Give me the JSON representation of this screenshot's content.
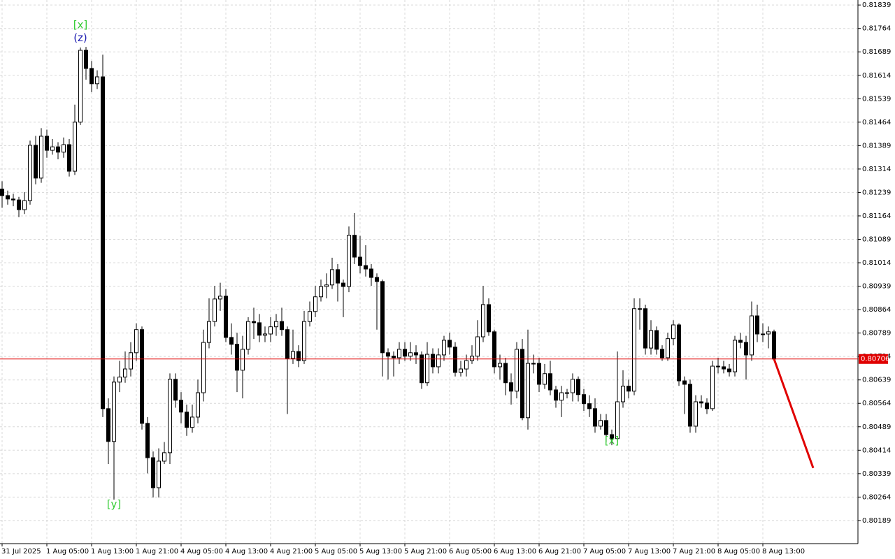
{
  "chart_data": {
    "type": "candlestick",
    "categories": [
      "31 Jul 2025",
      null,
      null,
      null,
      null,
      null,
      null,
      null,
      "1 Aug 05:00",
      null,
      null,
      null,
      null,
      null,
      null,
      null,
      "1 Aug 13:00",
      null,
      null,
      null,
      null,
      null,
      null,
      null,
      "1 Aug 21:00",
      null,
      null,
      null,
      null,
      null,
      null,
      null,
      "4 Aug 05:00",
      null,
      null,
      null,
      null,
      null,
      null,
      null,
      "4 Aug 13:00",
      null,
      null,
      null,
      null,
      null,
      null,
      null,
      "4 Aug 21:00",
      null,
      null,
      null,
      null,
      null,
      null,
      null,
      "5 Aug 05:00",
      null,
      null,
      null,
      null,
      null,
      null,
      null,
      "5 Aug 13:00",
      null,
      null,
      null,
      null,
      null,
      null,
      null,
      "5 Aug 21:00",
      null,
      null,
      null,
      null,
      null,
      null,
      null,
      "6 Aug 05:00",
      null,
      null,
      null,
      null,
      null,
      null,
      null,
      "6 Aug 13:00",
      null,
      null,
      null,
      null,
      null,
      null,
      null,
      "6 Aug 21:00",
      null,
      null,
      null,
      null,
      null,
      null,
      null,
      "7 Aug 05:00",
      null,
      null,
      null,
      null,
      null,
      null,
      null,
      "7 Aug 13:00",
      null,
      null,
      null,
      null,
      null,
      null,
      null,
      "7 Aug 21:00",
      null,
      null,
      null,
      null,
      null,
      null,
      null,
      "8 Aug 05:00",
      null,
      null,
      null,
      null,
      null,
      null,
      null,
      "8 Aug 13:00",
      null,
      null
    ],
    "open": [
      0.8125,
      0.81229,
      0.81218,
      0.81215,
      0.81184,
      0.81213,
      0.8139,
      0.81285,
      0.81419,
      0.81374,
      0.81385,
      0.81368,
      0.81392,
      0.81307,
      0.81464,
      0.81694,
      0.81636,
      0.81587,
      0.81609,
      0.80547,
      0.80442,
      0.80632,
      0.80648,
      0.80674,
      0.80726,
      0.808,
      0.805,
      0.8039,
      0.80294,
      0.80379,
      0.80406,
      0.80641,
      0.80574,
      0.80536,
      0.80487,
      0.8052,
      0.80598,
      0.80759,
      0.80826,
      0.80898,
      0.80907,
      0.80775,
      0.80753,
      0.8067,
      0.80737,
      0.80826,
      0.80822,
      0.80782,
      0.80786,
      0.80809,
      0.80826,
      0.808,
      0.80708,
      0.8073,
      0.80701,
      0.80826,
      0.80858,
      0.80905,
      0.80938,
      0.80943,
      0.80992,
      0.80949,
      0.80938,
      0.81102,
      0.81032,
      0.81005,
      0.80994,
      0.80967,
      0.80954,
      0.80726,
      0.80715,
      0.8071,
      0.80737,
      0.80715,
      0.80726,
      0.80719,
      0.8063,
      0.80721,
      0.80681,
      0.80719,
      0.80766,
      0.80744,
      0.80663,
      0.80674,
      0.80701,
      0.80715,
      0.80777,
      0.8088,
      0.80793,
      0.80681,
      0.80692,
      0.8063,
      0.80603,
      0.80737,
      0.80518,
      0.80692,
      0.80692,
      0.80625,
      0.80659,
      0.80607,
      0.80574,
      0.80598,
      0.80598,
      0.80641,
      0.80592,
      0.80563,
      0.80547,
      0.80491,
      0.80509,
      0.80464,
      0.80451,
      0.80569,
      0.80619,
      0.80603,
      0.80867,
      0.80867,
      0.80741,
      0.80797,
      0.80737,
      0.8071,
      0.80771,
      0.80815,
      0.80636,
      0.80625,
      0.80491,
      0.80569,
      0.80565,
      0.80547,
      0.80683,
      0.80681,
      0.80674,
      0.80665,
      0.80766,
      0.80759,
      0.80719,
      0.80844,
      0.80786,
      0.80786,
      0.80793
    ],
    "high": [
      0.81275,
      0.81245,
      0.81235,
      0.81225,
      0.8124,
      0.81405,
      0.8142,
      0.81445,
      0.8144,
      0.8141,
      0.814,
      0.81415,
      0.8141,
      0.8152,
      0.81703,
      0.81705,
      0.8166,
      0.8163,
      0.8168,
      0.8058,
      0.8065,
      0.807,
      0.8073,
      0.8076,
      0.8082,
      0.8081,
      0.8052,
      0.8041,
      0.8042,
      0.8044,
      0.8066,
      0.8066,
      0.806,
      0.8056,
      0.8056,
      0.8064,
      0.808,
      0.809,
      0.8094,
      0.8095,
      0.8093,
      0.8082,
      0.8079,
      0.8078,
      0.8084,
      0.8087,
      0.8085,
      0.8081,
      0.8084,
      0.8085,
      0.8087,
      0.8081,
      0.808,
      0.8075,
      0.8086,
      0.8089,
      0.8094,
      0.8096,
      0.8098,
      0.8103,
      0.8101,
      0.8096,
      0.8113,
      0.81173,
      0.811,
      0.8107,
      0.8101,
      0.8098,
      0.8096,
      0.8074,
      0.8073,
      0.8076,
      0.8076,
      0.8076,
      0.8075,
      0.8073,
      0.8076,
      0.8074,
      0.8074,
      0.8078,
      0.8079,
      0.8076,
      0.807,
      0.8072,
      0.8075,
      0.8083,
      0.8094,
      0.809,
      0.808,
      0.8072,
      0.8071,
      0.8066,
      0.8076,
      0.8077,
      0.808,
      0.8072,
      0.8071,
      0.8069,
      0.807,
      0.8062,
      0.8062,
      0.8061,
      0.8066,
      0.8065,
      0.8061,
      0.8059,
      0.8058,
      0.8053,
      0.8053,
      0.8048,
      0.8073,
      0.8067,
      0.8064,
      0.809,
      0.809,
      0.8088,
      0.8083,
      0.8081,
      0.8075,
      0.8079,
      0.8083,
      0.8082,
      0.8065,
      0.8064,
      0.8059,
      0.8059,
      0.8058,
      0.807,
      0.8071,
      0.807,
      0.8069,
      0.8078,
      0.8079,
      0.8078,
      0.8089,
      0.8088,
      0.8082,
      0.8081,
      0.808
    ],
    "low": [
      0.8119,
      0.812,
      0.81195,
      0.8116,
      0.8117,
      0.812,
      0.81265,
      0.8127,
      0.8135,
      0.8136,
      0.81345,
      0.8135,
      0.8129,
      0.81295,
      0.81455,
      0.816,
      0.8156,
      0.8157,
      0.8052,
      0.8037,
      0.80256,
      0.806,
      0.8063,
      0.8065,
      0.807,
      0.8048,
      0.8034,
      0.80263,
      0.80263,
      0.8037,
      0.8037,
      0.8055,
      0.805,
      0.8046,
      0.8047,
      0.805,
      0.8057,
      0.8074,
      0.8081,
      0.8086,
      0.8076,
      0.8072,
      0.806,
      0.8058,
      0.8072,
      0.8077,
      0.8076,
      0.8076,
      0.8076,
      0.8078,
      0.8078,
      0.8053,
      0.8069,
      0.8068,
      0.8069,
      0.8081,
      0.8084,
      0.8089,
      0.809,
      0.8093,
      0.8089,
      0.8084,
      0.8092,
      0.8101,
      0.8098,
      0.8097,
      0.8094,
      0.808,
      0.8065,
      0.8064,
      0.8065,
      0.8069,
      0.807,
      0.807,
      0.8069,
      0.8061,
      0.8062,
      0.8066,
      0.8066,
      0.807,
      0.8072,
      0.8065,
      0.8065,
      0.8065,
      0.8069,
      0.807,
      0.8076,
      0.8078,
      0.8066,
      0.8064,
      0.8059,
      0.8056,
      0.8058,
      0.8051,
      0.8048,
      0.8066,
      0.806,
      0.8061,
      0.8059,
      0.8055,
      0.8052,
      0.8058,
      0.8057,
      0.8057,
      0.8054,
      0.8052,
      0.8047,
      0.8048,
      0.8044,
      0.8043,
      0.8044,
      0.8055,
      0.8058,
      0.8059,
      0.808,
      0.8072,
      0.8072,
      0.8072,
      0.807,
      0.807,
      0.8075,
      0.8062,
      0.8053,
      0.8047,
      0.8047,
      0.8055,
      0.8053,
      0.8054,
      0.8066,
      0.8066,
      0.8065,
      0.8065,
      0.8074,
      0.8064,
      0.807,
      0.8076,
      0.8076,
      0.8074,
      0.807
    ],
    "close": [
      0.81229,
      0.81218,
      0.81215,
      0.81184,
      0.81213,
      0.8139,
      0.81285,
      0.81419,
      0.81374,
      0.81385,
      0.81368,
      0.81392,
      0.81307,
      0.81464,
      0.81694,
      0.81636,
      0.81587,
      0.81609,
      0.80547,
      0.80442,
      0.80632,
      0.80648,
      0.80674,
      0.80726,
      0.808,
      0.805,
      0.8039,
      0.80294,
      0.80379,
      0.80406,
      0.80641,
      0.80574,
      0.80536,
      0.80487,
      0.8052,
      0.80598,
      0.80759,
      0.80826,
      0.80898,
      0.80907,
      0.80775,
      0.80753,
      0.8067,
      0.80737,
      0.80826,
      0.80822,
      0.80782,
      0.80786,
      0.80809,
      0.80826,
      0.808,
      0.80708,
      0.8073,
      0.80701,
      0.80826,
      0.80858,
      0.80905,
      0.80938,
      0.80943,
      0.80992,
      0.80949,
      0.80938,
      0.81102,
      0.81032,
      0.81005,
      0.80994,
      0.80967,
      0.80954,
      0.80726,
      0.80715,
      0.8071,
      0.80737,
      0.80715,
      0.80726,
      0.80719,
      0.8063,
      0.80721,
      0.80681,
      0.80719,
      0.80766,
      0.80744,
      0.80663,
      0.80674,
      0.80701,
      0.80715,
      0.80777,
      0.8088,
      0.80793,
      0.80681,
      0.80692,
      0.8063,
      0.80603,
      0.80737,
      0.80518,
      0.80692,
      0.80692,
      0.80625,
      0.80659,
      0.80607,
      0.80574,
      0.80598,
      0.80598,
      0.80641,
      0.80592,
      0.80563,
      0.80547,
      0.80491,
      0.80509,
      0.80464,
      0.80451,
      0.80569,
      0.80619,
      0.80603,
      0.80867,
      0.80867,
      0.80741,
      0.80797,
      0.80737,
      0.8071,
      0.80771,
      0.80815,
      0.80636,
      0.80625,
      0.80491,
      0.80569,
      0.80565,
      0.80547,
      0.80683,
      0.80681,
      0.80674,
      0.80665,
      0.80766,
      0.80759,
      0.80719,
      0.80844,
      0.80786,
      0.80786,
      0.80793,
      0.80706
    ],
    "bull_color": "#ffffff",
    "bear_color": "#000000",
    "ylim": [
      0.80115,
      0.81855
    ],
    "yticks": [
      0.81839,
      0.81764,
      0.81689,
      0.81614,
      0.81539,
      0.81464,
      0.81389,
      0.81314,
      0.81239,
      0.81164,
      0.81089,
      0.81014,
      0.80939,
      0.80864,
      0.80789,
      0.80714,
      0.80639,
      0.80564,
      0.80489,
      0.80414,
      0.80339,
      0.80264,
      0.80189
    ],
    "grid": true,
    "current_price": 0.80706,
    "current_price_color": "#e00000",
    "trendline": {
      "x": [
        138,
        145
      ],
      "values": [
        0.80706,
        0.80357
      ],
      "color": "#e00000"
    },
    "annotations": [
      {
        "text": "[x]",
        "index": 14,
        "value": 0.81775,
        "color": "#33cc33"
      },
      {
        "text": "(z)",
        "index": 14,
        "value": 0.81733,
        "color": "#1a1ab0"
      },
      {
        "text": "[y]",
        "index": 20,
        "value": 0.8024,
        "color": "#33cc33"
      },
      {
        "text": "[x]",
        "index": 109,
        "value": 0.80444,
        "color": "#33cc33"
      }
    ]
  }
}
